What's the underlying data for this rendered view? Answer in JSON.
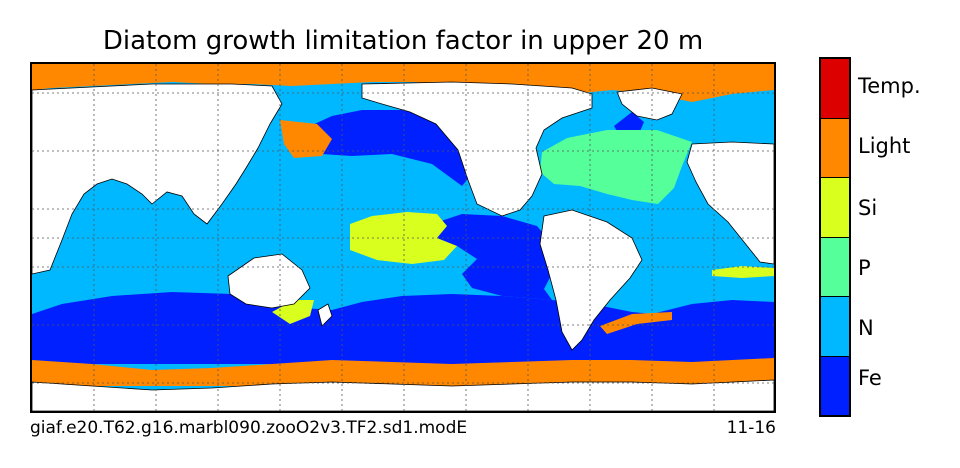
{
  "figure": {
    "title": "Diatom growth limitation factor in upper 20 m",
    "caption_left": "giaf.e20.T62.g16.marbl090.zooO2v3.TF2.sd1.modE",
    "caption_right": "11-16"
  },
  "colors": {
    "land": "#ffffff",
    "gridline": "#555555"
  },
  "legend": {
    "title": "",
    "categories": [
      {
        "label": "Temp.",
        "color": "#dd0000"
      },
      {
        "label": "Light",
        "color": "#ff8800"
      },
      {
        "label": "Si",
        "color": "#d8ff1e"
      },
      {
        "label": "P",
        "color": "#55ff99"
      },
      {
        "label": "N",
        "color": "#00b8ff"
      },
      {
        "label": "Fe",
        "color": "#0020ff"
      }
    ]
  }
}
